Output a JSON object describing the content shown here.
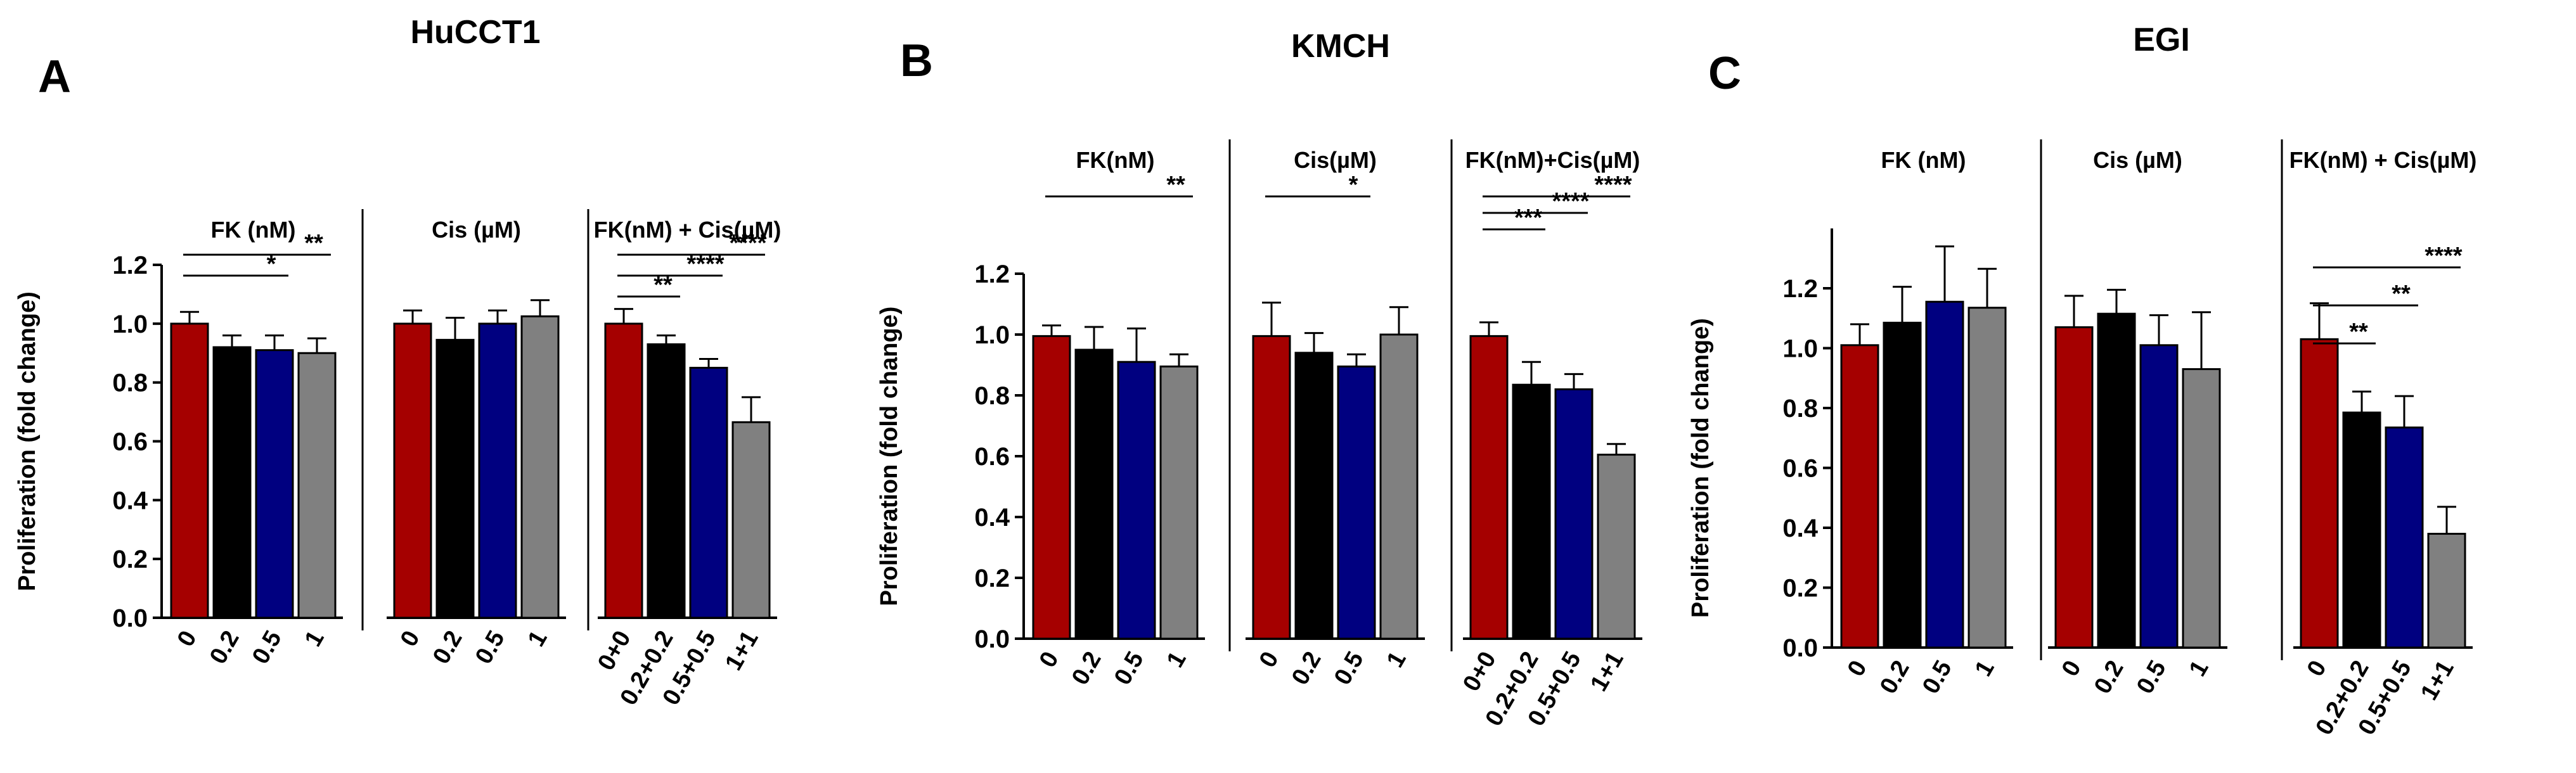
{
  "chart_data": [
    {
      "type": "bar",
      "panel_label": "A",
      "title": "HuCCT1",
      "ylabel": "Proliferation (fold change)",
      "ylim": [
        0,
        1.2
      ],
      "yticks": [
        "0.0",
        "0.2",
        "0.4",
        "0.6",
        "0.8",
        "1.0",
        "1.2"
      ],
      "y_axis_top": 1.2,
      "colors": [
        "#a50000",
        "#000000",
        "#000080",
        "#808080"
      ],
      "groups": [
        {
          "label": "FK (nM)",
          "categories": [
            "0",
            "0.2",
            "0.5",
            "1"
          ],
          "values": [
            1.0,
            0.92,
            0.91,
            0.9
          ],
          "errors": [
            0.04,
            0.04,
            0.05,
            0.05
          ],
          "significance": [
            {
              "from": 0,
              "to": 2,
              "label": "*"
            },
            {
              "from": 0,
              "to": 3,
              "label": "**"
            }
          ]
        },
        {
          "label": "Cis (µM)",
          "categories": [
            "0",
            "0.2",
            "0.5",
            "1"
          ],
          "values": [
            1.0,
            0.945,
            1.0,
            1.025
          ],
          "errors": [
            0.045,
            0.075,
            0.045,
            0.055
          ],
          "significance": []
        },
        {
          "label": "FK(nM) + Cis(µM)",
          "categories": [
            "0+0",
            "0.2+0.2",
            "0.5+0.5",
            "1+1"
          ],
          "values": [
            1.0,
            0.93,
            0.85,
            0.665
          ],
          "errors": [
            0.05,
            0.03,
            0.03,
            0.085
          ],
          "significance": [
            {
              "from": 0,
              "to": 1,
              "label": "**"
            },
            {
              "from": 0,
              "to": 2,
              "label": "****"
            },
            {
              "from": 0,
              "to": 3,
              "label": "****"
            }
          ]
        }
      ]
    },
    {
      "type": "bar",
      "panel_label": "B",
      "title": "KMCH",
      "ylabel": "Proliferation (fold change)",
      "ylim": [
        0,
        1.2
      ],
      "yticks": [
        "0.0",
        "0.2",
        "0.4",
        "0.6",
        "0.8",
        "1.0",
        "1.2"
      ],
      "y_axis_top": 1.2,
      "colors": [
        "#a50000",
        "#000000",
        "#000080",
        "#808080"
      ],
      "groups": [
        {
          "label": "FK(nM)",
          "categories": [
            "0",
            "0.2",
            "0.5",
            "1"
          ],
          "values": [
            0.995,
            0.95,
            0.91,
            0.895
          ],
          "errors": [
            0.035,
            0.075,
            0.11,
            0.04
          ],
          "significance": [
            {
              "from": 0,
              "to": 3,
              "label": "**"
            }
          ]
        },
        {
          "label": "Cis(µM)",
          "categories": [
            "0",
            "0.2",
            "0.5",
            "1"
          ],
          "values": [
            0.995,
            0.94,
            0.895,
            1.0
          ],
          "errors": [
            0.11,
            0.065,
            0.04,
            0.09
          ],
          "significance": [
            {
              "from": 0,
              "to": 2,
              "label": "*"
            }
          ]
        },
        {
          "label": "FK(nM)+Cis(µM)",
          "categories": [
            "0+0",
            "0.2+0.2",
            "0.5+0.5",
            "1+1"
          ],
          "values": [
            0.995,
            0.835,
            0.82,
            0.605
          ],
          "errors": [
            0.045,
            0.075,
            0.05,
            0.035
          ],
          "significance": [
            {
              "from": 0,
              "to": 1,
              "label": "***"
            },
            {
              "from": 0,
              "to": 2,
              "label": "****"
            },
            {
              "from": 0,
              "to": 3,
              "label": "****"
            }
          ]
        }
      ]
    },
    {
      "type": "bar",
      "panel_label": "C",
      "title": "EGI",
      "ylabel": "Proliferation (fold change)",
      "ylim": [
        0,
        1.2
      ],
      "yticks": [
        "0.0",
        "0.2",
        "0.4",
        "0.6",
        "0.8",
        "1.0",
        "1.2"
      ],
      "y_axis_top": 1.4,
      "colors": [
        "#a50000",
        "#000000",
        "#000080",
        "#808080"
      ],
      "groups": [
        {
          "label": "FK (nM)",
          "categories": [
            "0",
            "0.2",
            "0.5",
            "1"
          ],
          "values": [
            1.01,
            1.085,
            1.155,
            1.135
          ],
          "errors": [
            0.07,
            0.12,
            0.185,
            0.13
          ],
          "significance": []
        },
        {
          "label": "Cis (µM)",
          "categories": [
            "0",
            "0.2",
            "0.5",
            "1"
          ],
          "values": [
            1.07,
            1.115,
            1.01,
            0.93
          ],
          "errors": [
            0.105,
            0.08,
            0.1,
            0.19
          ],
          "significance": []
        },
        {
          "label": "FK(nM) + Cis(µM)",
          "categories": [
            "0",
            "0.2+0.2",
            "0.5+0.5",
            "1+1"
          ],
          "values": [
            1.03,
            0.785,
            0.735,
            0.38
          ],
          "errors": [
            0.12,
            0.07,
            0.105,
            0.09
          ],
          "significance": [
            {
              "from": 0,
              "to": 1,
              "label": "**"
            },
            {
              "from": 0,
              "to": 2,
              "label": "**"
            },
            {
              "from": 0,
              "to": 3,
              "label": "****"
            }
          ]
        }
      ]
    }
  ]
}
